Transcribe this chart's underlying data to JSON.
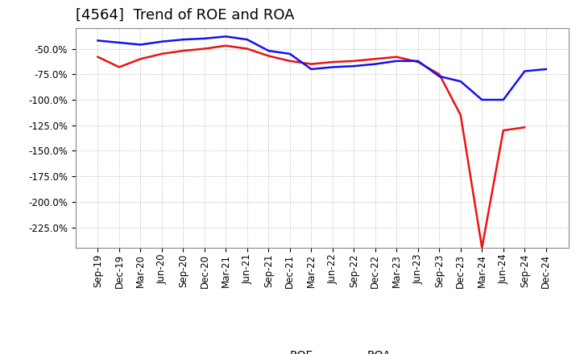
{
  "title": "[4564]  Trend of ROE and ROA",
  "x_labels": [
    "Sep-19",
    "Dec-19",
    "Mar-20",
    "Jun-20",
    "Sep-20",
    "Dec-20",
    "Mar-21",
    "Jun-21",
    "Sep-21",
    "Dec-21",
    "Mar-22",
    "Jun-22",
    "Sep-22",
    "Dec-22",
    "Mar-23",
    "Jun-23",
    "Sep-23",
    "Dec-23",
    "Mar-24",
    "Jun-24",
    "Sep-24",
    "Dec-24"
  ],
  "roe": [
    -58,
    -68,
    -60,
    -55,
    -52,
    -50,
    -47,
    -50,
    -57,
    -62,
    -65,
    -63,
    -62,
    -60,
    -58,
    -63,
    -75,
    -115,
    -245,
    -130,
    -127,
    null
  ],
  "roa": [
    -42,
    -44,
    -46,
    -43,
    -41,
    -40,
    -38,
    -41,
    -52,
    -55,
    -70,
    -68,
    -67,
    -65,
    -62,
    -62,
    -77,
    -82,
    -100,
    -100,
    -72,
    -70
  ],
  "roe_color": "#ee1111",
  "roa_color": "#1111ee",
  "background_color": "#ffffff",
  "plot_bg_color": "#ffffff",
  "grid_color": "#aaaaaa",
  "ylim_min": -245,
  "ylim_max": -30,
  "yticks": [
    -225,
    -200,
    -175,
    -150,
    -125,
    -100,
    -75,
    -50
  ],
  "title_fontsize": 13,
  "legend_fontsize": 10,
  "tick_fontsize": 8.5
}
